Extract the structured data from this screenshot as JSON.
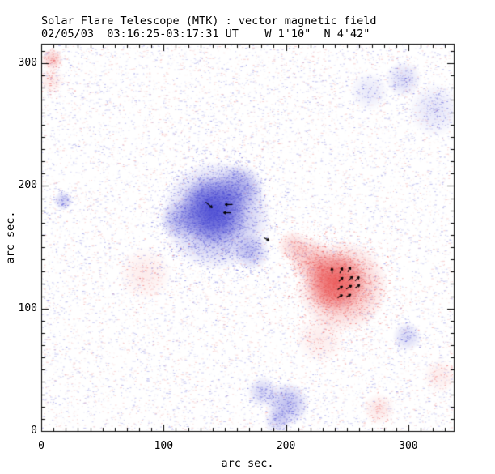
{
  "chart_data": {
    "type": "heatmap",
    "title": "Solar Flare Telescope (MTK) : vector magnetic field",
    "subtitle": "02/05/03  03:16:25-03:17:31 UT    W 1'10\"  N 4'42\"",
    "xlabel": "arc sec.",
    "ylabel": "arc sec.",
    "xlim": [
      0,
      337
    ],
    "ylim": [
      0,
      316
    ],
    "x_major_ticks": [
      0,
      100,
      200,
      300
    ],
    "y_major_ticks": [
      0,
      100,
      200,
      300
    ],
    "minor_tick_step": 10,
    "grid": false,
    "legend": "none",
    "colors": {
      "background": "#ffffff",
      "axis": "#000000",
      "negative_core": "#4444d2",
      "positive_core": "#eb5050",
      "negative_noise": "#7878dc",
      "positive_noise": "#ef9696",
      "vector": "#000000"
    },
    "polarity_regions": [
      {
        "name": "negative-sunspot-core",
        "polarity": "negative",
        "x": 140,
        "y": 180,
        "radius": 28,
        "intensity": 0.95
      },
      {
        "name": "negative-sunspot-body",
        "polarity": "negative",
        "x": 143,
        "y": 176,
        "radius": 45,
        "intensity": 0.55
      },
      {
        "name": "negative-sunspot-ne-lobe",
        "polarity": "negative",
        "x": 162,
        "y": 199,
        "radius": 20,
        "intensity": 0.4
      },
      {
        "name": "negative-sunspot-se-lobe",
        "polarity": "negative",
        "x": 172,
        "y": 146,
        "radius": 15,
        "intensity": 0.35
      },
      {
        "name": "negative-sunspot-w-lobe",
        "polarity": "negative",
        "x": 112,
        "y": 172,
        "radius": 16,
        "intensity": 0.3
      },
      {
        "name": "negative-patch-bottom-center",
        "polarity": "negative",
        "x": 201,
        "y": 22,
        "radius": 18,
        "intensity": 0.4
      },
      {
        "name": "negative-patch-bottom-center-2",
        "polarity": "negative",
        "x": 181,
        "y": 32,
        "radius": 13,
        "intensity": 0.28
      },
      {
        "name": "negative-patch-bottom-tail",
        "polarity": "negative",
        "x": 193,
        "y": 8,
        "radius": 11,
        "intensity": 0.25
      },
      {
        "name": "negative-patch-mid-right",
        "polarity": "negative",
        "x": 299,
        "y": 77,
        "radius": 12,
        "intensity": 0.25
      },
      {
        "name": "negative-patch-top-right",
        "polarity": "negative",
        "x": 296,
        "y": 287,
        "radius": 15,
        "intensity": 0.22
      },
      {
        "name": "negative-haze-right-edge",
        "polarity": "negative",
        "x": 322,
        "y": 262,
        "radius": 22,
        "intensity": 0.16
      },
      {
        "name": "negative-patch-upper-mid",
        "polarity": "negative",
        "x": 268,
        "y": 277,
        "radius": 16,
        "intensity": 0.14
      },
      {
        "name": "negative-patch-left",
        "polarity": "negative",
        "x": 18,
        "y": 188,
        "radius": 8,
        "intensity": 0.3
      },
      {
        "name": "positive-sunspot-core",
        "polarity": "positive",
        "x": 240,
        "y": 122,
        "radius": 25,
        "intensity": 0.92
      },
      {
        "name": "positive-sunspot-body",
        "polarity": "positive",
        "x": 246,
        "y": 118,
        "radius": 38,
        "intensity": 0.5
      },
      {
        "name": "positive-sunspot-nw-ridge",
        "polarity": "positive",
        "x": 220,
        "y": 140,
        "radius": 18,
        "intensity": 0.4
      },
      {
        "name": "positive-sunspot-nw-ridge-2",
        "polarity": "positive",
        "x": 206,
        "y": 151,
        "radius": 13,
        "intensity": 0.28
      },
      {
        "name": "positive-patch-top-left",
        "polarity": "positive",
        "x": 9,
        "y": 303,
        "radius": 9,
        "intensity": 0.35
      },
      {
        "name": "positive-haze-left-edge",
        "polarity": "positive",
        "x": 8,
        "y": 286,
        "radius": 11,
        "intensity": 0.15
      },
      {
        "name": "positive-band-left-mid",
        "polarity": "positive",
        "x": 85,
        "y": 128,
        "radius": 22,
        "intensity": 0.13
      },
      {
        "name": "positive-patch-bottom-right",
        "polarity": "positive",
        "x": 276,
        "y": 18,
        "radius": 13,
        "intensity": 0.16
      },
      {
        "name": "positive-haze-right-bottom",
        "polarity": "positive",
        "x": 326,
        "y": 45,
        "radius": 14,
        "intensity": 0.13
      },
      {
        "name": "positive-haze-below-red",
        "polarity": "positive",
        "x": 228,
        "y": 75,
        "radius": 20,
        "intensity": 0.13
      }
    ],
    "vectors": [
      {
        "x": 134.4,
        "y": 186.8,
        "angle": -41,
        "len": 7.0
      },
      {
        "x": 156.3,
        "y": 184.8,
        "angle": 180,
        "len": 6.0
      },
      {
        "x": 155.0,
        "y": 178.1,
        "angle": 180,
        "len": 6.0
      },
      {
        "x": 182.1,
        "y": 157.6,
        "angle": -27,
        "len": 4.5
      },
      {
        "x": 237.7,
        "y": 128.5,
        "angle": 92,
        "len": 4.5
      },
      {
        "x": 243.9,
        "y": 128.7,
        "angle": 63,
        "len": 5.0
      },
      {
        "x": 250.5,
        "y": 129.8,
        "angle": 59,
        "len": 4.5
      },
      {
        "x": 243.2,
        "y": 122.1,
        "angle": 45,
        "len": 4.7
      },
      {
        "x": 251.0,
        "y": 122.7,
        "angle": 45,
        "len": 4.7
      },
      {
        "x": 256.5,
        "y": 122.5,
        "angle": 45,
        "len": 4.7
      },
      {
        "x": 242.2,
        "y": 115.4,
        "angle": 34,
        "len": 4.8
      },
      {
        "x": 249.2,
        "y": 115.9,
        "angle": 33,
        "len": 5.3
      },
      {
        "x": 256.5,
        "y": 116.6,
        "angle": 35,
        "len": 4.6
      },
      {
        "x": 242.2,
        "y": 108.8,
        "angle": 30,
        "len": 4.5
      },
      {
        "x": 249.2,
        "y": 109.3,
        "angle": 30,
        "len": 4.4
      }
    ]
  }
}
